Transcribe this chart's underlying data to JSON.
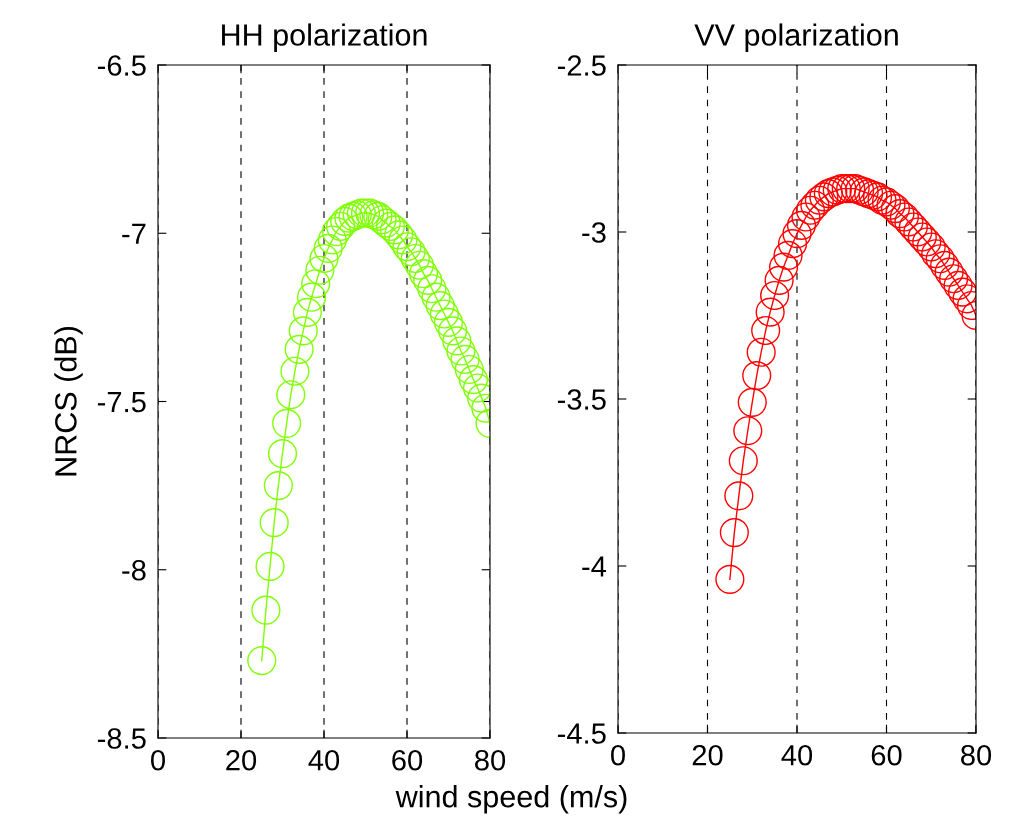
{
  "chart_data": [
    {
      "type": "line",
      "title": "HH polarization",
      "ylabel": "NRCS (dB)",
      "xlabel": "wind speed (m/s)",
      "xlim": [
        0,
        80
      ],
      "xticks": [
        0,
        20,
        40,
        60,
        80
      ],
      "ylim": [
        -8.5,
        -6.5
      ],
      "yticks": [
        -8.5,
        -8,
        -7.5,
        -7,
        -6.5
      ],
      "grid": "x",
      "marker": "circle",
      "line_style": "solid",
      "series": [
        {
          "color": "#7fff00",
          "x": [
            25,
            26,
            27,
            28,
            29,
            30,
            31,
            32,
            33,
            34,
            35,
            36,
            37,
            38,
            39,
            40,
            41,
            42,
            43,
            44,
            45,
            46,
            47,
            48,
            49,
            50,
            51,
            52,
            53,
            54,
            55,
            56,
            57,
            58,
            59,
            60,
            61,
            62,
            63,
            64,
            65,
            66,
            67,
            68,
            69,
            70,
            71,
            72,
            73,
            74,
            75,
            76,
            77,
            78,
            79,
            80
          ],
          "values": [
            -8.27,
            -8.12,
            -7.99,
            -7.86,
            -7.75,
            -7.655,
            -7.565,
            -7.48,
            -7.41,
            -7.345,
            -7.29,
            -7.235,
            -7.19,
            -7.15,
            -7.11,
            -7.075,
            -7.045,
            -7.02,
            -6.995,
            -6.98,
            -6.965,
            -6.955,
            -6.95,
            -6.945,
            -6.94,
            -6.94,
            -6.94,
            -6.945,
            -6.95,
            -6.96,
            -6.97,
            -6.98,
            -6.99,
            -7.005,
            -7.02,
            -7.04,
            -7.055,
            -7.075,
            -7.095,
            -7.12,
            -7.14,
            -7.165,
            -7.19,
            -7.215,
            -7.24,
            -7.265,
            -7.29,
            -7.32,
            -7.35,
            -7.375,
            -7.405,
            -7.435,
            -7.46,
            -7.49,
            -7.52,
            -7.565
          ]
        }
      ]
    },
    {
      "type": "line",
      "title": "VV polarization",
      "xlim": [
        0,
        80
      ],
      "xticks": [
        0,
        20,
        40,
        60,
        80
      ],
      "ylim": [
        -4.5,
        -2.5
      ],
      "yticks": [
        -4.5,
        -4,
        -3.5,
        -3,
        -2.5
      ],
      "grid": "x",
      "marker": "circle",
      "line_style": "solid",
      "series": [
        {
          "color": "#ff0000",
          "x": [
            25,
            26,
            27,
            28,
            29,
            30,
            31,
            32,
            33,
            34,
            35,
            36,
            37,
            38,
            39,
            40,
            41,
            42,
            43,
            44,
            45,
            46,
            47,
            48,
            49,
            50,
            51,
            52,
            53,
            54,
            55,
            56,
            57,
            58,
            59,
            60,
            61,
            62,
            63,
            64,
            65,
            66,
            67,
            68,
            69,
            70,
            71,
            72,
            73,
            74,
            75,
            76,
            77,
            78,
            79,
            80
          ],
          "values": [
            -4.04,
            -3.9,
            -3.79,
            -3.685,
            -3.595,
            -3.51,
            -3.43,
            -3.36,
            -3.295,
            -3.24,
            -3.19,
            -3.145,
            -3.105,
            -3.07,
            -3.035,
            -3.005,
            -2.98,
            -2.955,
            -2.935,
            -2.92,
            -2.905,
            -2.895,
            -2.885,
            -2.88,
            -2.875,
            -2.87,
            -2.87,
            -2.87,
            -2.87,
            -2.875,
            -2.88,
            -2.885,
            -2.89,
            -2.895,
            -2.905,
            -2.91,
            -2.92,
            -2.93,
            -2.945,
            -2.955,
            -2.97,
            -2.985,
            -3.0,
            -3.015,
            -3.03,
            -3.045,
            -3.065,
            -3.08,
            -3.1,
            -3.12,
            -3.14,
            -3.16,
            -3.18,
            -3.2,
            -3.22,
            -3.25
          ]
        }
      ]
    }
  ]
}
